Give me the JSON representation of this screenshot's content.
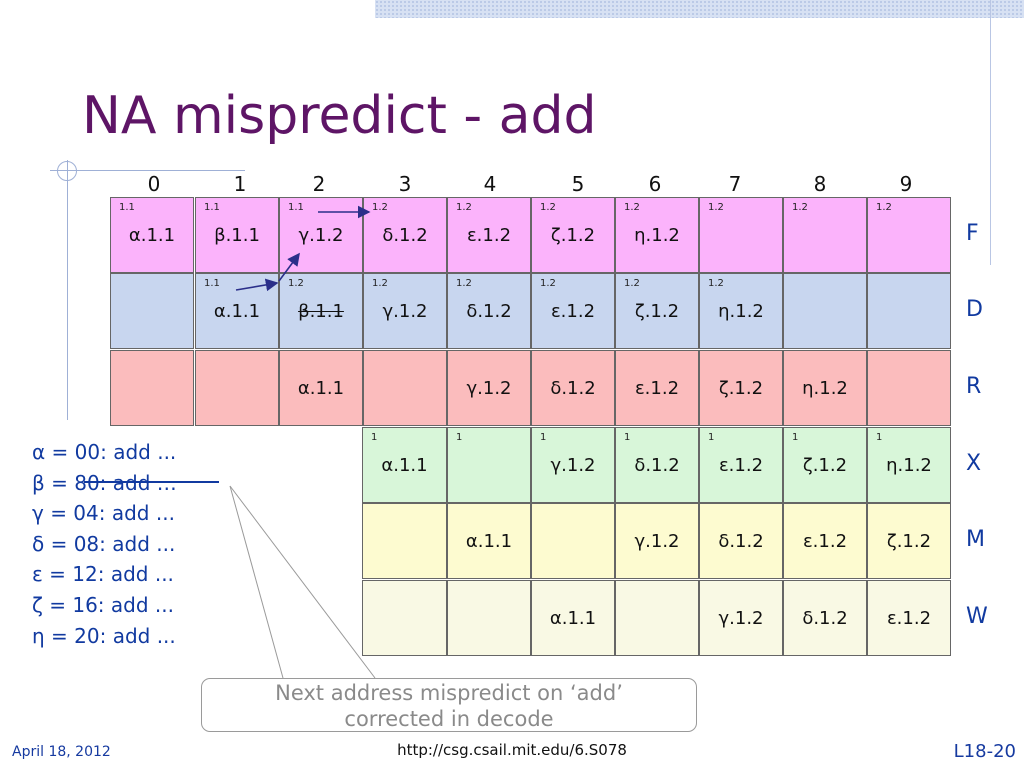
{
  "title": "NA mispredict - add",
  "columns": [
    "0",
    "1",
    "2",
    "3",
    "4",
    "5",
    "6",
    "7",
    "8",
    "9"
  ],
  "colors": {
    "F": "#fbb3fb",
    "D": "#c8d6ef",
    "R": "#fbbcbd",
    "X": "#d8f6d9",
    "M": "#fdfbd0",
    "W": "#f9f9e4",
    "title": "#5e1566",
    "accent": "#113aa0"
  },
  "stages": [
    {
      "name": "F",
      "cells": [
        {
          "tag": "1.1",
          "label": "α.1.1"
        },
        {
          "tag": "1.1",
          "label": "β.1.1"
        },
        {
          "tag": "1.1",
          "label": "γ.1.2"
        },
        {
          "tag": "1.2",
          "label": "δ.1.2"
        },
        {
          "tag": "1.2",
          "label": "ε.1.2"
        },
        {
          "tag": "1.2",
          "label": "ζ.1.2"
        },
        {
          "tag": "1.2",
          "label": "η.1.2"
        },
        {
          "tag": "1.2",
          "label": ""
        },
        {
          "tag": "1.2",
          "label": ""
        },
        {
          "tag": "1.2",
          "label": ""
        }
      ]
    },
    {
      "name": "D",
      "cells": [
        {
          "tag": "",
          "label": ""
        },
        {
          "tag": "1.1",
          "label": "α.1.1"
        },
        {
          "tag": "1.2",
          "label": "β.1.1"
        },
        {
          "tag": "1.2",
          "label": "γ.1.2"
        },
        {
          "tag": "1.2",
          "label": "δ.1.2"
        },
        {
          "tag": "1.2",
          "label": "ε.1.2"
        },
        {
          "tag": "1.2",
          "label": "ζ.1.2"
        },
        {
          "tag": "1.2",
          "label": "η.1.2"
        },
        {
          "tag": "",
          "label": ""
        },
        {
          "tag": "",
          "label": ""
        }
      ]
    },
    {
      "name": "R",
      "cells": [
        {
          "tag": "",
          "label": ""
        },
        {
          "tag": "",
          "label": ""
        },
        {
          "tag": "",
          "label": "α.1.1"
        },
        {
          "tag": "",
          "label": ""
        },
        {
          "tag": "",
          "label": "γ.1.2"
        },
        {
          "tag": "",
          "label": "δ.1.2"
        },
        {
          "tag": "",
          "label": "ε.1.2"
        },
        {
          "tag": "",
          "label": "ζ.1.2"
        },
        {
          "tag": "",
          "label": "η.1.2"
        },
        {
          "tag": "",
          "label": ""
        }
      ]
    },
    {
      "name": "X",
      "cells": [
        null,
        null,
        null,
        {
          "tag": "1",
          "label": "α.1.1"
        },
        {
          "tag": "1",
          "label": ""
        },
        {
          "tag": "1",
          "label": "γ.1.2"
        },
        {
          "tag": "1",
          "label": "δ.1.2"
        },
        {
          "tag": "1",
          "label": "ε.1.2"
        },
        {
          "tag": "1",
          "label": "ζ.1.2"
        },
        {
          "tag": "1",
          "label": "η.1.2"
        }
      ]
    },
    {
      "name": "M",
      "cells": [
        null,
        null,
        null,
        {
          "tag": "",
          "label": ""
        },
        {
          "tag": "",
          "label": "α.1.1"
        },
        {
          "tag": "",
          "label": ""
        },
        {
          "tag": "",
          "label": "γ.1.2"
        },
        {
          "tag": "",
          "label": "δ.1.2"
        },
        {
          "tag": "",
          "label": "ε.1.2"
        },
        {
          "tag": "",
          "label": "ζ.1.2"
        }
      ]
    },
    {
      "name": "W",
      "cells": [
        null,
        null,
        null,
        {
          "tag": "",
          "label": ""
        },
        {
          "tag": "",
          "label": ""
        },
        {
          "tag": "",
          "label": "α.1.1"
        },
        {
          "tag": "",
          "label": ""
        },
        {
          "tag": "",
          "label": "γ.1.2"
        },
        {
          "tag": "",
          "label": "δ.1.2"
        },
        {
          "tag": "",
          "label": "ε.1.2"
        }
      ]
    }
  ],
  "legend": [
    "α = 00: add ...",
    "β = 80: add …",
    "γ = 04: add ...",
    "δ = 08: add ...",
    "ε = 12: add ...",
    "ζ = 16: add ...",
    "η = 20: add ..."
  ],
  "callout": {
    "line1": "Next address mispredict on ‘add’",
    "line2": "corrected in decode"
  },
  "footer": {
    "date": "April 18, 2012",
    "url": "http://csg.csail.mit.edu/6.S078",
    "page": "L18-20"
  }
}
